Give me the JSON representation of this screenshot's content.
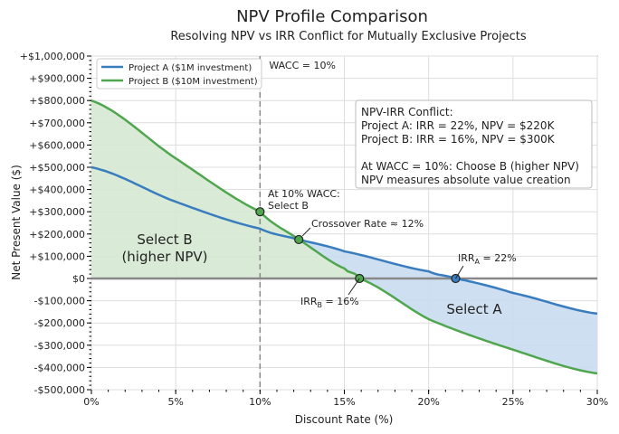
{
  "chart_data": {
    "type": "line",
    "title": "NPV Profile Comparison",
    "subtitle": "Resolving NPV vs IRR Conflict for Mutually Exclusive Projects",
    "xlabel": "Discount Rate (%)",
    "ylabel": "Net Present Value ($)",
    "xlim": [
      0,
      30
    ],
    "ylim": [
      -500000,
      1000000
    ],
    "xticks": [
      0,
      5,
      10,
      15,
      20,
      25,
      30
    ],
    "xtick_labels": [
      "0%",
      "5%",
      "10%",
      "15%",
      "20%",
      "25%",
      "30%"
    ],
    "yticks": [
      -500000,
      -400000,
      -300000,
      -200000,
      -100000,
      0,
      100000,
      200000,
      300000,
      400000,
      500000,
      600000,
      700000,
      800000,
      900000,
      1000000
    ],
    "ytick_labels": [
      "-$500,000",
      "-$400,000",
      "-$300,000",
      "-$200,000",
      "-$100,000",
      "$0",
      "+$100,000",
      "+$200,000",
      "+$300,000",
      "+$400,000",
      "+$500,000",
      "+$600,000",
      "+$700,000",
      "+$800,000",
      "+$900,000",
      "+$1,000,000"
    ],
    "grid": true,
    "legend_placement": "top-left",
    "series": [
      {
        "name": "Project A ($1M investment)",
        "color": "#3a7dbf",
        "x": [
          0,
          5,
          10,
          12.3,
          15,
          20,
          21.6,
          25,
          30
        ],
        "y": [
          500000,
          345000,
          224000,
          175000,
          122000,
          32000,
          0,
          -65000,
          -158000
        ]
      },
      {
        "name": "Project B ($10M investment)",
        "color": "#4fa64f",
        "x": [
          0,
          5,
          10,
          12.3,
          15,
          15.9,
          20,
          25,
          30
        ],
        "y": [
          800000,
          540000,
          300000,
          175000,
          45000,
          0,
          -183000,
          -320000,
          -427000
        ]
      }
    ],
    "wacc": {
      "x": 10,
      "label": "WACC = 10%"
    },
    "points": [
      {
        "x": 10,
        "y": 300000,
        "color": "#4fa64f",
        "label": "At 10% WACC:\nSelect B"
      },
      {
        "x": 12.3,
        "y": 175000,
        "color": "#4fa64f",
        "label": "Crossover Rate ≈ 12%"
      },
      {
        "x": 15.9,
        "y": 0,
        "color": "#4fa64f",
        "label": "IRR",
        "sub": "B",
        "suffix": " = 16%"
      },
      {
        "x": 21.6,
        "y": 0,
        "color": "#3a7dbf",
        "label": "IRR",
        "sub": "A",
        "suffix": " = 22%"
      }
    ],
    "regions": [
      {
        "label": "Select B\n(higher NPV)",
        "color": "#d5e9d3"
      },
      {
        "label": "Select A",
        "color": "#c9dcef"
      }
    ],
    "annotation_box": [
      "NPV-IRR Conflict:",
      "Project A: IRR = 22%, NPV = $220K",
      "Project B: IRR = 16%, NPV = $300K",
      "",
      "At WACC = 10%: Choose B (higher NPV)",
      "NPV measures absolute value creation"
    ]
  }
}
